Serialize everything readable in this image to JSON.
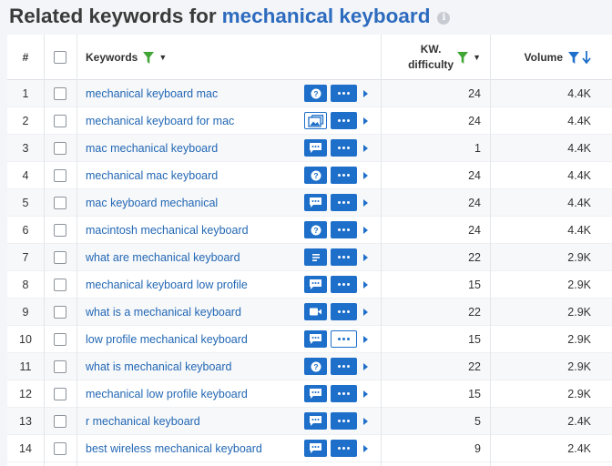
{
  "header": {
    "title_prefix": "Related keywords for",
    "title_query": "mechanical keyboard",
    "info_glyph": "i"
  },
  "columns": {
    "num": "#",
    "keywords": "Keywords",
    "kd_line1": "KW.",
    "kd_line2": "difficulty",
    "volume": "Volume"
  },
  "colors": {
    "accent_blue": "#1e6fc9",
    "link_blue": "#2267b4",
    "filter_green": "#3fa535"
  },
  "rows": [
    {
      "num": "1",
      "keyword": "mechanical keyboard mac",
      "serp_icon": "question-icon",
      "kd": "24",
      "volume": "4.4K"
    },
    {
      "num": "2",
      "keyword": "mechanical keyboard for mac",
      "serp_icon": "image-pack-icon",
      "kd": "24",
      "volume": "4.4K"
    },
    {
      "num": "3",
      "keyword": "mac mechanical keyboard",
      "serp_icon": "reviews-icon",
      "kd": "1",
      "volume": "4.4K"
    },
    {
      "num": "4",
      "keyword": "mechanical mac keyboard",
      "serp_icon": "question-icon",
      "kd": "24",
      "volume": "4.4K"
    },
    {
      "num": "5",
      "keyword": "mac keyboard mechanical",
      "serp_icon": "reviews-icon",
      "kd": "24",
      "volume": "4.4K"
    },
    {
      "num": "6",
      "keyword": "macintosh mechanical keyboard",
      "serp_icon": "question-icon",
      "kd": "24",
      "volume": "4.4K"
    },
    {
      "num": "7",
      "keyword": "what are mechanical keyboard",
      "serp_icon": "featured-snippet-icon",
      "kd": "22",
      "volume": "2.9K"
    },
    {
      "num": "8",
      "keyword": "mechanical keyboard low profile",
      "serp_icon": "reviews-icon",
      "kd": "15",
      "volume": "2.9K"
    },
    {
      "num": "9",
      "keyword": "what is a mechanical keyboard",
      "serp_icon": "video-icon",
      "kd": "22",
      "volume": "2.9K"
    },
    {
      "num": "10",
      "keyword": "low profile mechanical keyboard",
      "serp_icon": "reviews-icon",
      "kd": "15",
      "volume": "2.9K"
    },
    {
      "num": "11",
      "keyword": "what is mechanical keyboard",
      "serp_icon": "question-icon",
      "kd": "22",
      "volume": "2.9K"
    },
    {
      "num": "12",
      "keyword": "mechanical low profile keyboard",
      "serp_icon": "reviews-icon",
      "kd": "15",
      "volume": "2.9K"
    },
    {
      "num": "13",
      "keyword": "r mechanical keyboard",
      "serp_icon": "reviews-icon",
      "kd": "5",
      "volume": "2.4K"
    },
    {
      "num": "14",
      "keyword": "best wireless mechanical keyboard",
      "serp_icon": "reviews-icon",
      "kd": "9",
      "volume": "2.4K"
    }
  ]
}
